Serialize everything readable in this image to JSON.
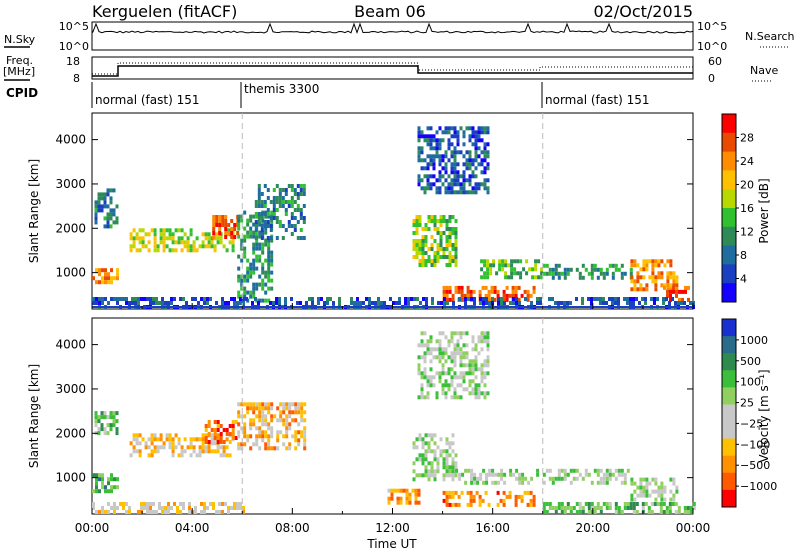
{
  "header": {
    "station": "Kerguelen (fitACF)",
    "beam": "Beam 06",
    "date": "02/Oct/2015"
  },
  "top_panels": {
    "nsky_label": "N.Sky",
    "nsky_ticks": [
      "10^5",
      "10^0"
    ],
    "nsearch_label": "N.Search",
    "nsearch_ticks": [
      "10^5",
      "10^0"
    ],
    "freq_label_1": "Freq.",
    "freq_label_2": "[MHz]",
    "freq_ticks": [
      "18",
      "8"
    ],
    "nave_label": "Nave",
    "nave_ticks": [
      "60",
      "0"
    ],
    "cpid_label": "CPID",
    "cpid_segments": [
      {
        "label": "normal (fast) 151",
        "start_h": 0,
        "end_h": 6
      },
      {
        "label": "themis 3300",
        "start_h": 6,
        "end_h": 18
      },
      {
        "label": "normal (fast) 151",
        "start_h": 18,
        "end_h": 24
      }
    ]
  },
  "chart_data": [
    {
      "type": "heatmap",
      "title": "Power",
      "xlabel": "Time UT",
      "ylabel": "Slant Range [km]",
      "xlim_hours": [
        0,
        24
      ],
      "ylim": [
        180,
        4600
      ],
      "x_ticks": [
        "00:00",
        "04:00",
        "08:00",
        "12:00",
        "16:00",
        "20:00",
        "00:00"
      ],
      "y_ticks": [
        1000,
        2000,
        3000,
        4000
      ],
      "colorbar_label": "Power [dB]",
      "colorbar_ticks": [
        "28",
        "24",
        "20",
        "16",
        "12",
        "8",
        "4"
      ],
      "colorbar_colors": [
        "#ff0000",
        "#e84a00",
        "#ff8c00",
        "#ffc000",
        "#b8d800",
        "#30c030",
        "#2e8b57",
        "#1f6d9e",
        "#1a3fc0",
        "#1400ff"
      ],
      "regions": [
        {
          "t0": 0.0,
          "t1": 1.0,
          "r0": 800,
          "r1": 1100,
          "level": 0.75
        },
        {
          "t0": 0.1,
          "t1": 1.0,
          "r0": 2000,
          "r1": 2900,
          "level": 0.3
        },
        {
          "t0": 1.5,
          "t1": 5.6,
          "r0": 1500,
          "r1": 2000,
          "level": 0.55
        },
        {
          "t0": 4.8,
          "t1": 5.8,
          "r0": 1800,
          "r1": 2300,
          "level": 0.85
        },
        {
          "t0": 5.8,
          "t1": 7.2,
          "r0": 400,
          "r1": 2400,
          "level": 0.35
        },
        {
          "t0": 6.5,
          "t1": 8.5,
          "r0": 1800,
          "r1": 3000,
          "level": 0.3
        },
        {
          "t0": 12.8,
          "t1": 14.5,
          "r0": 1200,
          "r1": 2300,
          "level": 0.5
        },
        {
          "t0": 13.0,
          "t1": 15.8,
          "r0": 2800,
          "r1": 4300,
          "level": 0.2
        },
        {
          "t0": 14.0,
          "t1": 17.7,
          "r0": 400,
          "r1": 700,
          "level": 0.85
        },
        {
          "t0": 15.5,
          "t1": 18.0,
          "r0": 900,
          "r1": 1300,
          "level": 0.45
        },
        {
          "t0": 18.0,
          "t1": 21.5,
          "r0": 900,
          "r1": 1200,
          "level": 0.35
        },
        {
          "t0": 21.5,
          "t1": 23.3,
          "r0": 600,
          "r1": 1300,
          "level": 0.75
        },
        {
          "t0": 22.8,
          "t1": 23.8,
          "r0": 400,
          "r1": 700,
          "level": 0.9
        },
        {
          "t0": 0.0,
          "t1": 24.0,
          "r0": 180,
          "r1": 450,
          "level": 0.2
        }
      ]
    },
    {
      "type": "heatmap",
      "title": "Velocity",
      "xlabel": "Time UT",
      "ylabel": "Slant Range [km]",
      "xlim_hours": [
        0,
        24
      ],
      "ylim": [
        180,
        4600
      ],
      "x_ticks": [
        "00:00",
        "04:00",
        "08:00",
        "12:00",
        "16:00",
        "20:00",
        "00:00"
      ],
      "y_ticks": [
        1000,
        2000,
        3000,
        4000
      ],
      "colorbar_label": "Velocity [m s⁻¹]",
      "colorbar_ticks": [
        "1000",
        "500",
        "100",
        "25",
        "−25",
        "−100",
        "−500",
        "−1000"
      ],
      "colorbar_colors": [
        "#1a2fd0",
        "#2a6a8a",
        "#2f8a50",
        "#3bbf3b",
        "#90d060",
        "#c8c8c8",
        "#c8c8c8",
        "#ffc000",
        "#ff9000",
        "#ff5a00",
        "#ff0000"
      ],
      "regions": [
        {
          "t0": 0.0,
          "t1": 1.0,
          "r0": 700,
          "r1": 1100,
          "level": 0.3
        },
        {
          "t0": 0.1,
          "t1": 1.0,
          "r0": 2000,
          "r1": 2500,
          "level": 0.35
        },
        {
          "t0": 1.5,
          "t1": 5.6,
          "r0": 1500,
          "r1": 2000,
          "level": 0.65
        },
        {
          "t0": 4.5,
          "t1": 5.8,
          "r0": 1800,
          "r1": 2300,
          "level": 0.85
        },
        {
          "t0": 5.8,
          "t1": 8.5,
          "r0": 1700,
          "r1": 2700,
          "level": 0.7
        },
        {
          "t0": 12.8,
          "t1": 14.5,
          "r0": 1000,
          "r1": 2000,
          "level": 0.45
        },
        {
          "t0": 11.8,
          "t1": 13.0,
          "r0": 400,
          "r1": 750,
          "level": 0.75
        },
        {
          "t0": 13.0,
          "t1": 15.8,
          "r0": 2800,
          "r1": 4300,
          "level": 0.45
        },
        {
          "t0": 14.0,
          "t1": 17.7,
          "r0": 400,
          "r1": 700,
          "level": 0.8
        },
        {
          "t0": 14.5,
          "t1": 17.8,
          "r0": 850,
          "r1": 1200,
          "level": 0.45
        },
        {
          "t0": 18.0,
          "t1": 21.5,
          "r0": 850,
          "r1": 1200,
          "level": 0.45
        },
        {
          "t0": 21.5,
          "t1": 23.3,
          "r0": 500,
          "r1": 1000,
          "level": 0.45
        },
        {
          "t0": 0.0,
          "t1": 6.0,
          "r0": 180,
          "r1": 450,
          "level": 0.62
        },
        {
          "t0": 18.0,
          "t1": 24.0,
          "r0": 180,
          "r1": 450,
          "level": 0.35
        }
      ]
    }
  ]
}
